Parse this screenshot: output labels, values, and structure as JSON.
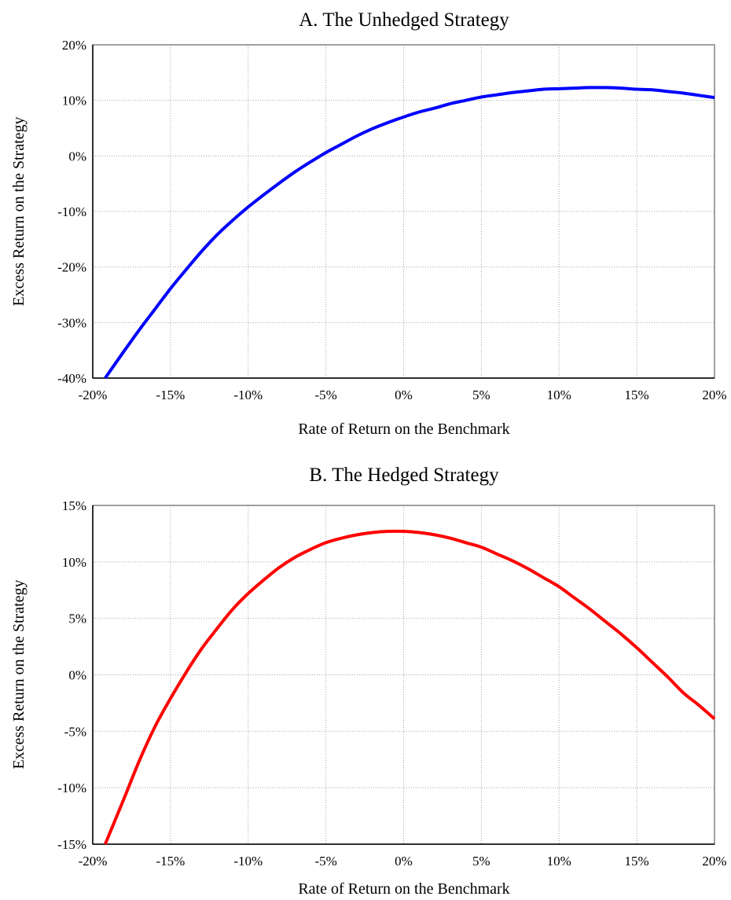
{
  "chart_data": [
    {
      "type": "line",
      "title": "A. The Unhedged Strategy",
      "xlabel": "Rate of Return on the Benchmark",
      "ylabel": "Excess Return on the Strategy",
      "xlim": [
        -20,
        20
      ],
      "ylim": [
        -40,
        20
      ],
      "xticks": [
        -20,
        -15,
        -10,
        -5,
        0,
        5,
        10,
        15,
        20
      ],
      "yticks": [
        20,
        10,
        0,
        -10,
        -20,
        -30,
        -40
      ],
      "xtick_labels": [
        "-20%",
        "-15%",
        "-10%",
        "-5%",
        "0%",
        "5%",
        "10%",
        "15%",
        "20%"
      ],
      "ytick_labels": [
        "20%",
        "10%",
        "0%",
        "-10%",
        "-20%",
        "-30%",
        "-40%"
      ],
      "grid": true,
      "series": [
        {
          "color": "#0000ff",
          "x": [
            -19.2,
            -18,
            -17,
            -16,
            -15,
            -14,
            -13,
            -12,
            -11,
            -10,
            -9,
            -8,
            -7,
            -6,
            -5,
            -4,
            -3,
            -2,
            -1,
            0,
            1,
            2,
            3,
            4,
            5,
            6,
            7,
            8,
            9,
            10,
            11,
            12,
            13,
            14,
            15,
            16,
            17,
            18,
            19,
            20
          ],
          "y": [
            -40.0,
            -35.2,
            -31.3,
            -27.6,
            -23.9,
            -20.5,
            -17.2,
            -14.2,
            -11.6,
            -9.2,
            -7.0,
            -4.9,
            -2.9,
            -1.1,
            0.6,
            2.1,
            3.6,
            4.9,
            6.0,
            7.0,
            7.9,
            8.6,
            9.4,
            10.0,
            10.6,
            11.0,
            11.4,
            11.7,
            12.0,
            12.1,
            12.2,
            12.3,
            12.3,
            12.2,
            12.0,
            11.9,
            11.6,
            11.3,
            10.9,
            10.5
          ]
        }
      ]
    },
    {
      "type": "line",
      "title": "B. The Hedged Strategy",
      "xlabel": "Rate of Return on the Benchmark",
      "ylabel": "Excess Return on the Strategy",
      "xlim": [
        -20,
        20
      ],
      "ylim": [
        -15,
        15
      ],
      "xticks": [
        -20,
        -15,
        -10,
        -5,
        0,
        5,
        10,
        15,
        20
      ],
      "yticks": [
        15,
        10,
        5,
        0,
        -5,
        -10,
        -15
      ],
      "xtick_labels": [
        "-20%",
        "-15%",
        "-10%",
        "-5%",
        "0%",
        "5%",
        "10%",
        "15%",
        "20%"
      ],
      "ytick_labels": [
        "15%",
        "10%",
        "5%",
        "0%",
        "-5%",
        "-10%",
        "-15%"
      ],
      "grid": true,
      "series": [
        {
          "color": "#ff0000",
          "x": [
            -19.2,
            -18,
            -17,
            -16,
            -15,
            -14,
            -13,
            -12,
            -11,
            -10,
            -9,
            -8,
            -7,
            -6,
            -5,
            -4,
            -3,
            -2,
            -1,
            0,
            1,
            2,
            3,
            4,
            5,
            6,
            7,
            8,
            9,
            10,
            11,
            12,
            13,
            14,
            15,
            16,
            17,
            18,
            19,
            20
          ],
          "y": [
            -15.0,
            -11.0,
            -7.6,
            -4.6,
            -2.1,
            0.2,
            2.3,
            4.1,
            5.8,
            7.2,
            8.4,
            9.5,
            10.4,
            11.1,
            11.7,
            12.1,
            12.4,
            12.6,
            12.7,
            12.7,
            12.6,
            12.4,
            12.1,
            11.7,
            11.3,
            10.7,
            10.1,
            9.4,
            8.6,
            7.8,
            6.8,
            5.8,
            4.7,
            3.6,
            2.4,
            1.1,
            -0.2,
            -1.6,
            -2.7,
            -3.9
          ]
        }
      ]
    }
  ]
}
